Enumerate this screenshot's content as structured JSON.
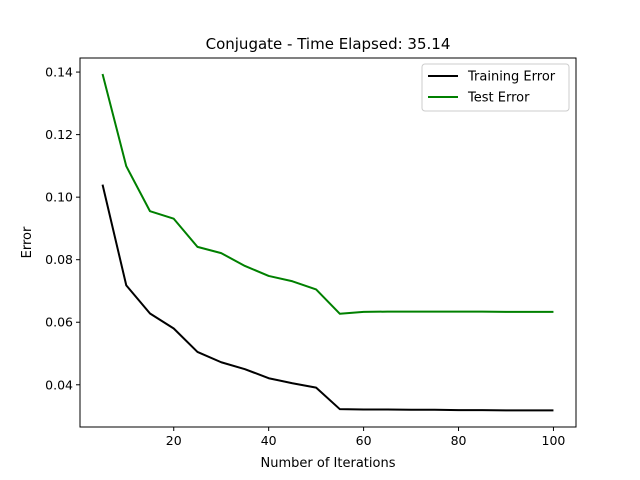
{
  "chart_data": {
    "type": "line",
    "title": "Conjugate - Time Elapsed: 35.14",
    "xlabel": "Number of Iterations",
    "ylabel": "Error",
    "xlim": [
      0.25,
      104.75
    ],
    "ylim": [
      0.0265,
      0.1445
    ],
    "xticks": [
      20,
      40,
      60,
      80,
      100
    ],
    "xtick_labels": [
      "20",
      "40",
      "60",
      "80",
      "100"
    ],
    "yticks": [
      0.04,
      0.06,
      0.08,
      0.1,
      0.12,
      0.14
    ],
    "ytick_labels": [
      "0.04",
      "0.06",
      "0.08",
      "0.10",
      "0.12",
      "0.14"
    ],
    "grid": false,
    "legend_position": "top-right",
    "x": [
      5,
      10,
      15,
      20,
      25,
      30,
      35,
      40,
      45,
      50,
      55,
      60,
      65,
      70,
      75,
      80,
      85,
      90,
      95,
      100
    ],
    "series": [
      {
        "name": "Training Error",
        "color": "#000000",
        "values": [
          0.104,
          0.0718,
          0.0628,
          0.058,
          0.0505,
          0.0472,
          0.045,
          0.0421,
          0.0405,
          0.0391,
          0.0322,
          0.0321,
          0.0321,
          0.032,
          0.032,
          0.0319,
          0.0319,
          0.0318,
          0.0318,
          0.0318
        ]
      },
      {
        "name": "Test Error",
        "color": "#008000",
        "values": [
          0.1394,
          0.1099,
          0.0955,
          0.0931,
          0.0841,
          0.0821,
          0.078,
          0.0748,
          0.0731,
          0.0705,
          0.0627,
          0.0633,
          0.0634,
          0.0634,
          0.0634,
          0.0634,
          0.0634,
          0.0633,
          0.0633,
          0.0633
        ]
      }
    ]
  }
}
